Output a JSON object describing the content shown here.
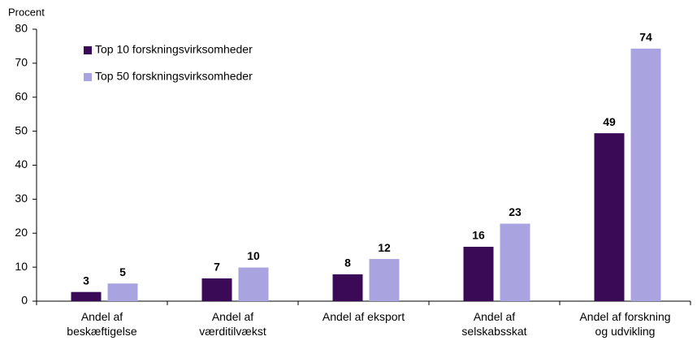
{
  "chart_data": {
    "type": "bar",
    "y_label": "Procent",
    "categories": [
      "Andel af\nbeskæftigelse",
      "Andel af\nværditilvækst",
      "Andel af eksport",
      "Andel af\nselskabsskat",
      "Andel af forskning\nog udvikling"
    ],
    "series": [
      {
        "name": "Top 10 forskningsvirksomheder",
        "color": "#3b0a57",
        "values": [
          2.7,
          6.7,
          7.9,
          16.0,
          49.4
        ],
        "value_labels": [
          "3",
          "7",
          "8",
          "16",
          "49"
        ]
      },
      {
        "name": "Top 50 forskningsvirksomheder",
        "color": "#a9a4e0",
        "values": [
          5.2,
          9.9,
          12.4,
          22.8,
          74.3
        ],
        "value_labels": [
          "5",
          "10",
          "12",
          "23",
          "74"
        ]
      }
    ],
    "ylim": [
      0,
      80
    ],
    "yticks": [
      0,
      10,
      20,
      30,
      40,
      50,
      60,
      70,
      80
    ],
    "legend": "top-left"
  }
}
